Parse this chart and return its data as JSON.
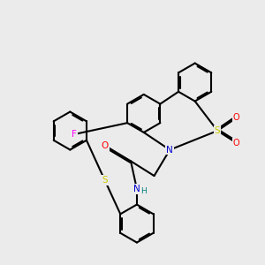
{
  "background_color": "#ebebeb",
  "atom_colors": {
    "N": "#0000cc",
    "O": "#ff0000",
    "S": "#cccc00",
    "F": "#ff00ff",
    "H": "#008080",
    "C": "#000000"
  },
  "line_color": "#000000",
  "line_width": 1.5,
  "dbo": 0.055,
  "figsize": [
    3.0,
    3.0
  ],
  "dpi": 100
}
